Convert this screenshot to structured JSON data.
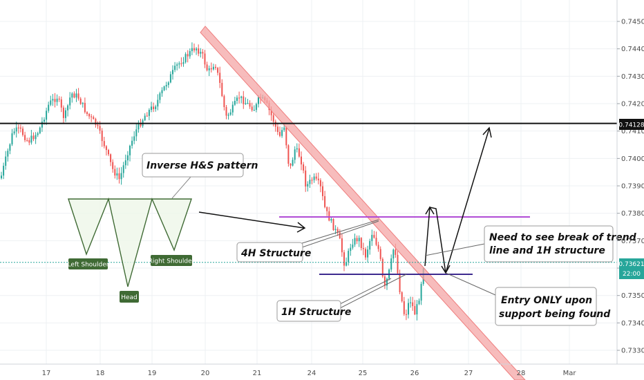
{
  "chart_data": {
    "type": "candlestick",
    "y_ticks": [
      "0.74500",
      "0.74400",
      "0.74300",
      "0.74200",
      "0.74100",
      "0.74000",
      "0.73900",
      "0.73800",
      "0.73700",
      "0.73600",
      "0.73500",
      "0.73400",
      "0.73300"
    ],
    "y_tick_values": [
      0.745,
      0.744,
      0.743,
      0.742,
      0.741,
      0.74,
      0.739,
      0.738,
      0.737,
      0.736,
      0.735,
      0.734,
      0.733
    ],
    "x_ticks": [
      "17",
      "18",
      "19",
      "20",
      "21",
      "24",
      "25",
      "26",
      "27",
      "28",
      "Mar"
    ],
    "ylim": [
      0.7326,
      0.7456
    ],
    "grid": true,
    "colors": {
      "up": "#26a69a",
      "down": "#ef5350",
      "trendline": "#f4a6a6",
      "resistance_purple": "#b04bd6",
      "support_navy": "#3d2a8f",
      "key_level": "#111111",
      "current_price": "#26a69a",
      "pattern_green": "#3f6a34"
    },
    "key_level": {
      "value": 0.74128,
      "label": "0.74128"
    },
    "current_price": {
      "value": 0.73621,
      "label": "0.73621",
      "countdown": "22:00"
    },
    "levels": [
      {
        "name": "4H structure",
        "value": 0.7379
      },
      {
        "name": "1H structure",
        "value": 0.7359
      }
    ],
    "pattern": {
      "title": "Inverse H&S pattern",
      "labels": {
        "left": "Left Shoulder",
        "head": "Head",
        "right": "Right Shoulder"
      }
    },
    "annotations": {
      "h4": "4H Structure",
      "h1": "1H Structure",
      "break_line1": "Need to see break of trend",
      "break_line2": "line and 1H structure",
      "entry_line1": "Entry ONLY upon",
      "entry_line2": "support being found"
    }
  }
}
